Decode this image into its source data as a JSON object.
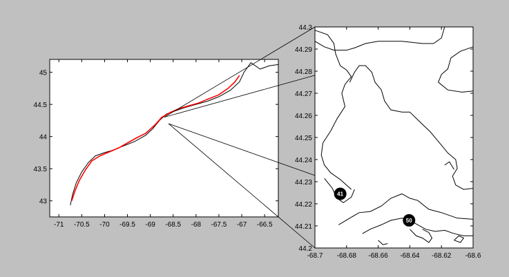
{
  "chart_data": [
    {
      "type": "map",
      "title": "",
      "xlabel": "",
      "ylabel": "",
      "xlim": [
        -71.2,
        -66.2
      ],
      "ylim": [
        42.75,
        45.2
      ],
      "x_ticks": [
        "-71",
        "-70.5",
        "-70",
        "-69.5",
        "-69",
        "-68.5",
        "-68",
        "-67.5",
        "-67",
        "-66.5"
      ],
      "y_ticks": [
        "43",
        "43.5",
        "44",
        "44.5",
        "45"
      ],
      "x_tick_values": [
        -71,
        -70.5,
        -70,
        -69.5,
        -69,
        -68.5,
        -68,
        -67.5,
        -67,
        -66.5
      ],
      "y_tick_values": [
        43,
        43.5,
        44,
        44.5,
        45
      ],
      "series": [
        {
          "color": "#000000",
          "role": "coastline",
          "points": [
            [
              -70.75,
              42.93
            ],
            [
              -70.7,
              43.1
            ],
            [
              -70.62,
              43.28
            ],
            [
              -70.5,
              43.45
            ],
            [
              -70.35,
              43.6
            ],
            [
              -70.2,
              43.7
            ],
            [
              -70.0,
              43.75
            ],
            [
              -69.85,
              43.78
            ],
            [
              -69.6,
              43.85
            ],
            [
              -69.35,
              43.92
            ],
            [
              -69.1,
              44.02
            ],
            [
              -68.95,
              44.12
            ],
            [
              -68.8,
              44.25
            ],
            [
              -68.65,
              44.35
            ],
            [
              -68.45,
              44.4
            ],
            [
              -68.25,
              44.45
            ],
            [
              -68.0,
              44.5
            ],
            [
              -67.75,
              44.55
            ],
            [
              -67.5,
              44.62
            ],
            [
              -67.25,
              44.72
            ],
            [
              -67.05,
              44.85
            ],
            [
              -66.95,
              45.0
            ],
            [
              -66.8,
              45.15
            ],
            [
              -66.6,
              45.05
            ],
            [
              -66.4,
              45.1
            ],
            [
              -66.2,
              45.12
            ]
          ]
        },
        {
          "color": "#ff0000",
          "role": "highlighted coast",
          "points": [
            [
              -70.72,
              43.0
            ],
            [
              -70.65,
              43.15
            ],
            [
              -70.55,
              43.32
            ],
            [
              -70.42,
              43.48
            ],
            [
              -70.28,
              43.62
            ],
            [
              -70.1,
              43.7
            ],
            [
              -69.9,
              43.76
            ],
            [
              -69.7,
              43.82
            ],
            [
              -69.5,
              43.9
            ],
            [
              -69.3,
              43.98
            ],
            [
              -69.1,
              44.05
            ],
            [
              -68.9,
              44.18
            ],
            [
              -68.75,
              44.3
            ],
            [
              -68.55,
              44.38
            ],
            [
              -68.35,
              44.44
            ],
            [
              -68.15,
              44.48
            ],
            [
              -67.95,
              44.52
            ],
            [
              -67.75,
              44.58
            ],
            [
              -67.5,
              44.65
            ],
            [
              -67.3,
              44.75
            ],
            [
              -67.15,
              44.85
            ],
            [
              -67.05,
              44.95
            ]
          ]
        }
      ],
      "zoom_box": {
        "x": [
          -68.7,
          -68.6
        ],
        "y": [
          44.2,
          44.3
        ]
      }
    },
    {
      "type": "map",
      "title": "",
      "xlabel": "",
      "ylabel": "",
      "xlim": [
        -68.7,
        -68.6
      ],
      "ylim": [
        44.2,
        44.3
      ],
      "x_ticks": [
        "-68.7",
        "-68.68",
        "-68.66",
        "-68.64",
        "-68.62",
        "-68.6"
      ],
      "y_ticks": [
        "44.2",
        "44.21",
        "44.22",
        "44.23",
        "44.24",
        "44.25",
        "44.26",
        "44.27",
        "44.28",
        "44.29",
        "44.3"
      ],
      "x_tick_values": [
        -68.7,
        -68.68,
        -68.66,
        -68.64,
        -68.62,
        -68.6
      ],
      "y_tick_values": [
        44.2,
        44.21,
        44.22,
        44.23,
        44.24,
        44.25,
        44.26,
        44.27,
        44.28,
        44.29,
        44.3
      ],
      "stations": [
        {
          "label": "41",
          "x": -68.684,
          "y": 44.2245
        },
        {
          "label": "50",
          "x": -68.6405,
          "y": 44.2125
        }
      ],
      "series": [
        {
          "color": "#000000",
          "role": "coastline",
          "points": [
            [
              -68.7,
              44.2935
            ],
            [
              -68.694,
              44.291
            ],
            [
              -68.688,
              44.2895
            ],
            [
              -68.68,
              44.2895
            ],
            [
              -68.675,
              44.2905
            ],
            [
              -68.668,
              44.2925
            ],
            [
              -68.66,
              44.2935
            ],
            [
              -68.645,
              44.2935
            ],
            [
              -68.632,
              44.2925
            ],
            [
              -68.625,
              44.2925
            ],
            [
              -68.62,
              44.295
            ],
            [
              -68.618,
              44.3
            ]
          ]
        },
        {
          "color": "#000000",
          "role": "coastline",
          "points": [
            [
              -68.6,
              44.291
            ],
            [
              -68.608,
              44.289
            ],
            [
              -68.614,
              44.286
            ],
            [
              -68.616,
              44.281
            ],
            [
              -68.62,
              44.2785
            ],
            [
              -68.622,
              44.275
            ],
            [
              -68.616,
              44.2715
            ],
            [
              -68.607,
              44.2705
            ],
            [
              -68.6,
              44.271
            ]
          ]
        },
        {
          "color": "#000000",
          "role": "coastline",
          "points": [
            [
              -68.7,
              44.2985
            ],
            [
              -68.692,
              44.2965
            ],
            [
              -68.688,
              44.2925
            ],
            [
              -68.687,
              44.288
            ],
            [
              -68.684,
              44.2825
            ],
            [
              -68.68,
              44.2805
            ],
            [
              -68.677,
              44.2775
            ],
            [
              -68.681,
              44.274
            ],
            [
              -68.683,
              44.27
            ],
            [
              -68.681,
              44.264
            ],
            [
              -68.686,
              44.2585
            ],
            [
              -68.69,
              44.253
            ],
            [
              -68.695,
              44.2475
            ],
            [
              -68.696,
              44.242
            ],
            [
              -68.694,
              44.2375
            ],
            [
              -68.69,
              44.234
            ],
            [
              -68.684,
              44.231
            ],
            [
              -68.677,
              44.2265
            ]
          ]
        },
        {
          "color": "#000000",
          "role": "coastline",
          "points": [
            [
              -68.678,
              44.275
            ],
            [
              -68.675,
              44.2795
            ],
            [
              -68.672,
              44.2825
            ],
            [
              -68.668,
              44.2825
            ],
            [
              -68.664,
              44.2795
            ],
            [
              -68.662,
              44.275
            ],
            [
              -68.658,
              44.2715
            ],
            [
              -68.656,
              44.2665
            ],
            [
              -68.652,
              44.2625
            ],
            [
              -68.645,
              44.2615
            ],
            [
              -68.64,
              44.2615
            ],
            [
              -68.635,
              44.258
            ],
            [
              -68.627,
              44.2525
            ],
            [
              -68.62,
              44.2465
            ],
            [
              -68.616,
              44.243
            ],
            [
              -68.611,
              44.24
            ],
            [
              -68.61,
              44.236
            ],
            [
              -68.613,
              44.2325
            ],
            [
              -68.611,
              44.2285
            ],
            [
              -68.606,
              44.2265
            ],
            [
              -68.6,
              44.227
            ]
          ]
        },
        {
          "color": "#000000",
          "role": "coastline",
          "points": [
            [
              -68.694,
              44.2315
            ],
            [
              -68.689,
              44.227
            ],
            [
              -68.686,
              44.2225
            ],
            [
              -68.682,
              44.2205
            ],
            [
              -68.677,
              44.223
            ],
            [
              -68.675,
              44.2265
            ]
          ]
        },
        {
          "color": "#000000",
          "role": "coastline",
          "points": [
            [
              -68.685,
              44.2105
            ],
            [
              -68.678,
              44.2135
            ],
            [
              -68.672,
              44.216
            ],
            [
              -68.665,
              44.2165
            ],
            [
              -68.658,
              44.219
            ],
            [
              -68.652,
              44.2225
            ],
            [
              -68.645,
              44.2245
            ],
            [
              -68.64,
              44.2225
            ],
            [
              -68.635,
              44.2215
            ],
            [
              -68.628,
              44.2175
            ],
            [
              -68.62,
              44.216
            ],
            [
              -68.61,
              44.2135
            ],
            [
              -68.6,
              44.213
            ]
          ]
        },
        {
          "color": "#000000",
          "role": "coastline",
          "points": [
            [
              -68.67,
              44.2065
            ],
            [
              -68.665,
              44.2085
            ],
            [
              -68.658,
              44.2105
            ],
            [
              -68.652,
              44.2125
            ],
            [
              -68.645,
              44.2135
            ],
            [
              -68.64,
              44.2125
            ],
            [
              -68.635,
              44.2105
            ],
            [
              -68.63,
              44.2085
            ],
            [
              -68.624,
              44.2075
            ],
            [
              -68.618,
              44.208
            ],
            [
              -68.612,
              44.2065
            ],
            [
              -68.606,
              44.2055
            ],
            [
              -68.6,
              44.2055
            ]
          ]
        },
        {
          "color": "#000000",
          "role": "coastline",
          "points": [
            [
              -68.64,
              44.2085
            ],
            [
              -68.636,
              44.2055
            ],
            [
              -68.632,
              44.2045
            ],
            [
              -68.628,
              44.2025
            ],
            [
              -68.626,
              44.2045
            ],
            [
              -68.628,
              44.207
            ],
            [
              -68.632,
              44.2085
            ]
          ]
        },
        {
          "color": "#000000",
          "role": "coastline",
          "points": [
            [
              -68.66,
              44.2035
            ],
            [
              -68.657,
              44.2015
            ],
            [
              -68.654,
              44.202
            ]
          ]
        },
        {
          "color": "#000000",
          "role": "coastline",
          "points": [
            [
              -68.612,
              44.2035
            ],
            [
              -68.609,
              44.2055
            ],
            [
              -68.606,
              44.2045
            ],
            [
              -68.608,
              44.2025
            ],
            [
              -68.612,
              44.2035
            ]
          ]
        },
        {
          "color": "#000000",
          "role": "coastline",
          "points": [
            [
              -68.618,
              44.2375
            ],
            [
              -68.615,
              44.239
            ],
            [
              -68.612,
              44.2355
            ]
          ]
        }
      ]
    }
  ]
}
